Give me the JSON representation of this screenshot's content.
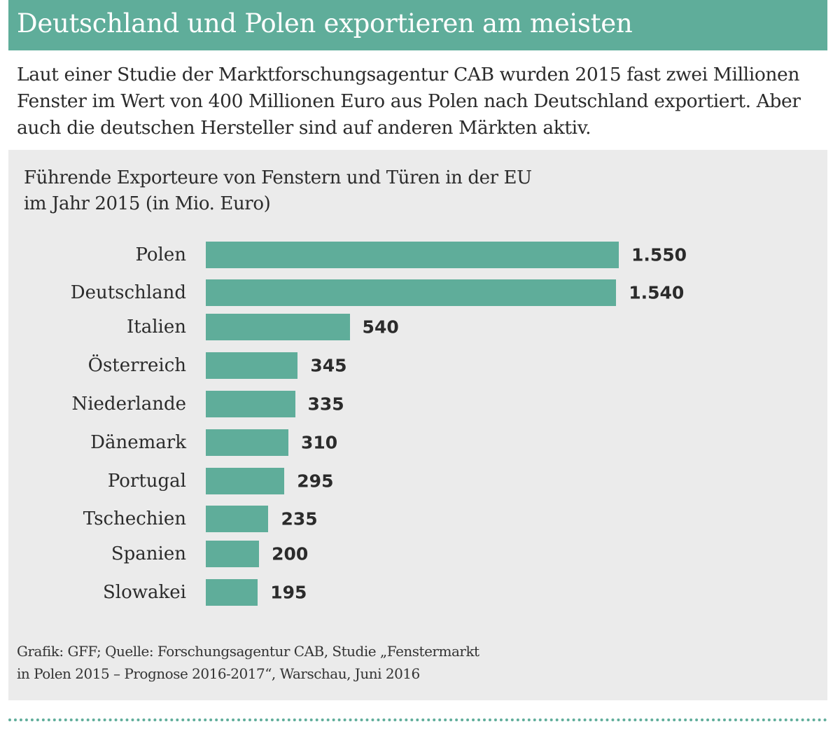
{
  "header": {
    "title": "Deutschland und Polen exportieren am meisten"
  },
  "intro": {
    "text": "Laut einer Studie der Marktforschungsagentur CAB wurden 2015 fast zwei Millionen Fenster im Wert von 400 Millionen Euro aus Polen nach Deutschland exportiert. Aber auch die deutschen Hersteller sind auf anderen Märkten aktiv."
  },
  "chart_data": {
    "type": "bar",
    "orientation": "horizontal",
    "title_line1": "Führende Exporteure von Fenstern und Türen in der EU",
    "title_line2": "im Jahr 2015 (in Mio. Euro)",
    "categories": [
      "Polen",
      "Deutschland",
      "Italien",
      "Österreich",
      "Niederlande",
      "Dänemark",
      "Portugal",
      "Tschechien",
      "Spanien",
      "Slowakei"
    ],
    "values": [
      1550,
      1540,
      540,
      345,
      335,
      310,
      295,
      235,
      200,
      195
    ],
    "value_labels": [
      "1.550",
      "1.540",
      "540",
      "345",
      "335",
      "310",
      "295",
      "235",
      "200",
      "195"
    ],
    "xlim": [
      0,
      1550
    ],
    "grid": false,
    "bar_color": "#5fad9a"
  },
  "source": {
    "line1": "Grafik: GFF; Quelle: Forschungsagentur CAB, Studie „Fenstermarkt",
    "line2": "in Polen 2015 – Prognose 2016-2017“, Warschau, Juni  2016"
  }
}
